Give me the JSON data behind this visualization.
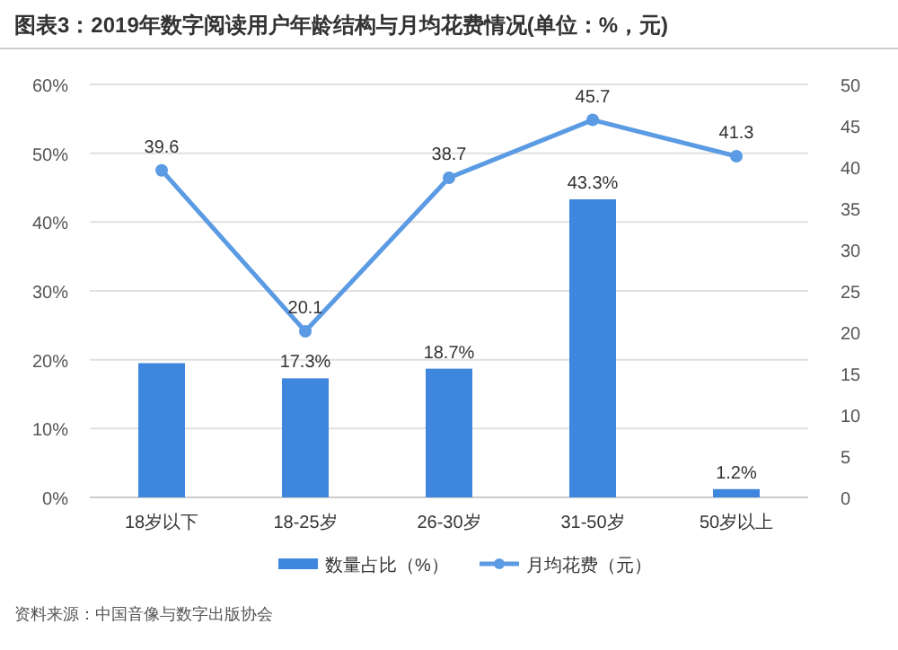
{
  "chart_data": {
    "type": "bar",
    "title": "图表3：2019年数字阅读用户年龄结构与月均花费情况(单位：%，元)",
    "categories": [
      "18岁以下",
      "18-25岁",
      "26-30岁",
      "31-50岁",
      "50岁以上"
    ],
    "series": [
      {
        "name": "数量占比（%）",
        "color": "#3f86de",
        "values": [
          19.5,
          17.3,
          18.7,
          43.3,
          1.2
        ],
        "value_labels": [
          null,
          "17.3%",
          "18.7%",
          "43.3%",
          "1.2%"
        ]
      },
      {
        "name": "月均花费（元）",
        "type": "line",
        "axis": "y2",
        "color": "#5b9be3",
        "values": [
          39.6,
          20.1,
          38.7,
          45.7,
          41.3
        ],
        "value_labels": [
          "39.6",
          "20.1",
          "38.7",
          "45.7",
          "41.3"
        ]
      }
    ],
    "ylim": [
      0,
      60
    ],
    "yticks": [
      {
        "value": 0,
        "label": "0%"
      },
      {
        "value": 10,
        "label": "10%"
      },
      {
        "value": 20,
        "label": "20%"
      },
      {
        "value": 30,
        "label": "30%"
      },
      {
        "value": 40,
        "label": "40%"
      },
      {
        "value": 50,
        "label": "50%"
      },
      {
        "value": 60,
        "label": "60%"
      }
    ],
    "y2lim": [
      0,
      50
    ],
    "y2ticks": [
      0,
      5,
      10,
      15,
      20,
      25,
      30,
      35,
      40,
      45,
      50
    ],
    "grid": "y",
    "legend": "bottom",
    "marker": "circle",
    "annotations": [
      "资料来源：中国音像与数字出版协会"
    ]
  }
}
